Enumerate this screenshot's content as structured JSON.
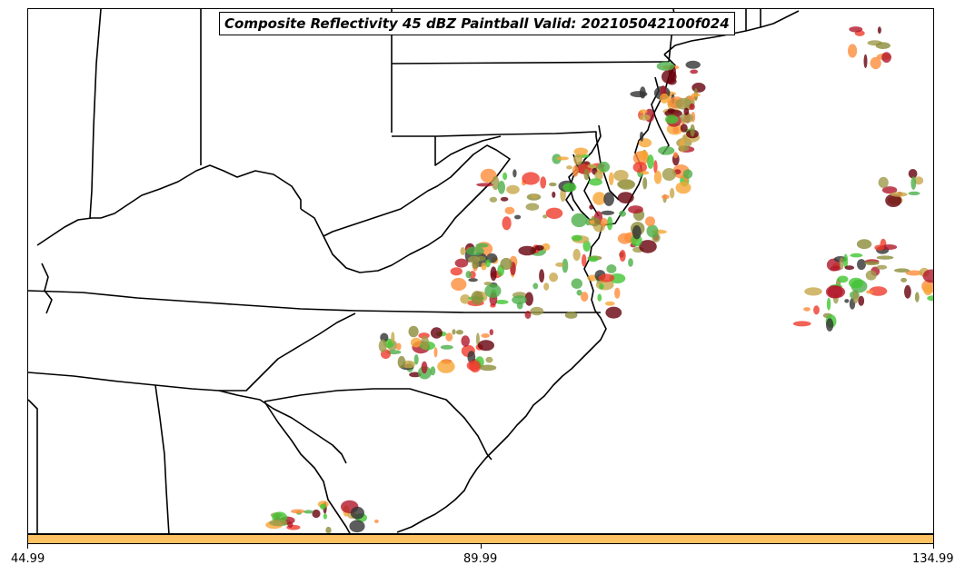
{
  "title": "Composite Reflectivity 45 dBZ Paintball Valid: 202105042100f024",
  "colorbar": {
    "color": "#ffc263",
    "ticks": [
      "44.99",
      "89.99",
      "134.99"
    ]
  },
  "member_colors": [
    "#ef3b2c",
    "#fd8d3c",
    "#f7a535",
    "#8c8c3a",
    "#4daf4a",
    "#41c632",
    "#b2182b",
    "#67000d",
    "#333333",
    "#c8a84b",
    "#9e9a4a"
  ],
  "map": {
    "region": "Eastern United States (Mid-Atlantic / Southeast)",
    "boundaries": "state borders and coastline"
  }
}
